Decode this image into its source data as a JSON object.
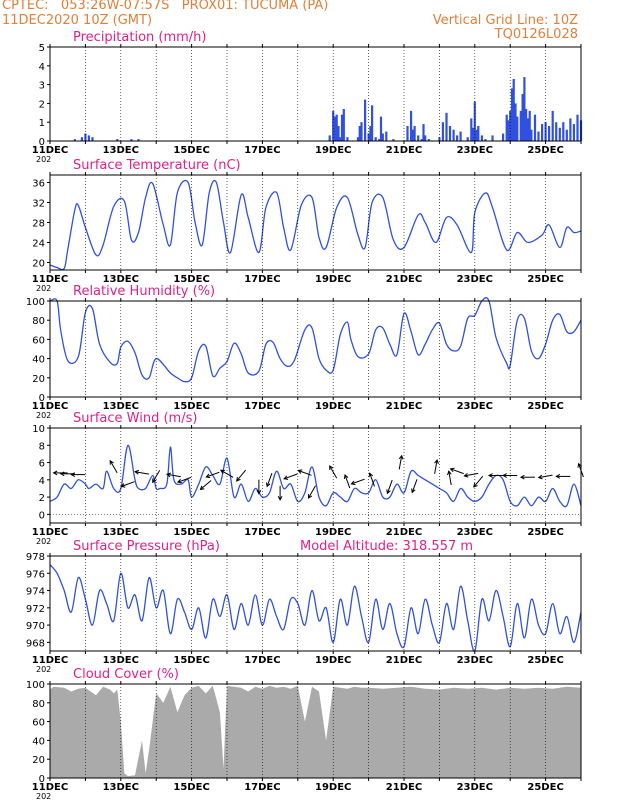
{
  "header": {
    "left_line1": "CPTEC:   053:26W-07:57S   PROX01: TUCUMA (PA)",
    "left_line2": "11DEC2020 10Z (GMT)",
    "right_line1": "Vertical Grid Line: 10Z",
    "right_line2": "TQ0126L028"
  },
  "colors": {
    "header": "#e0803a",
    "title": "#e0208a",
    "line": "#3050e0",
    "cloud": "#aaaaaa",
    "arrow": "#000000"
  },
  "x_axis": {
    "start_day": 11,
    "end_day": 26,
    "tick_labels": [
      "11DEC",
      "13DEC",
      "15DEC",
      "17DEC",
      "19DEC",
      "21DEC",
      "23DEC",
      "25DEC"
    ],
    "year_fragment": "202"
  },
  "chart_data": [
    {
      "type": "bar",
      "title": "Precipitation (mm/h)",
      "ylim": [
        0,
        5
      ],
      "yticks": [
        0,
        1,
        2,
        3,
        4,
        5
      ],
      "x": [
        11.7,
        11.9,
        12.0,
        12.1,
        12.2,
        12.9,
        13.3,
        13.5,
        18.9,
        19.0,
        19.05,
        19.1,
        19.15,
        19.2,
        19.25,
        19.3,
        19.4,
        19.7,
        19.75,
        19.8,
        19.9,
        20.0,
        20.05,
        20.1,
        20.2,
        20.3,
        20.35,
        20.4,
        20.5,
        20.7,
        21.1,
        21.2,
        21.25,
        21.3,
        21.4,
        21.5,
        21.55,
        21.6,
        21.7,
        22.0,
        22.1,
        22.2,
        22.3,
        22.4,
        22.5,
        22.6,
        22.8,
        22.9,
        22.95,
        23.0,
        23.05,
        23.1,
        23.2,
        23.3,
        23.5,
        23.8,
        23.9,
        23.95,
        24.0,
        24.05,
        24.1,
        24.15,
        24.2,
        24.3,
        24.35,
        24.4,
        24.45,
        24.5,
        24.55,
        24.6,
        24.7,
        24.8,
        24.9,
        25.0,
        25.1,
        25.2,
        25.3,
        25.4,
        25.5,
        25.6,
        25.7,
        25.8,
        25.9,
        26.0
      ],
      "values": [
        0.1,
        0.2,
        0.4,
        0.3,
        0.2,
        0.1,
        0.1,
        0.1,
        0.3,
        1.6,
        1.3,
        1.4,
        0.8,
        0.2,
        1.4,
        1.7,
        0.2,
        0.2,
        0.8,
        1.0,
        2.2,
        0.4,
        0.8,
        1.9,
        0.2,
        0.1,
        1.3,
        0.4,
        0.5,
        0.1,
        0.8,
        1.6,
        0.6,
        0.8,
        0.3,
        0.1,
        0.9,
        0.3,
        0.1,
        0.2,
        1.0,
        1.5,
        0.8,
        0.6,
        0.3,
        0.5,
        0.2,
        1.2,
        0.7,
        2.1,
        0.6,
        0.8,
        0.3,
        0.1,
        0.3,
        0.4,
        1.4,
        1.1,
        1.6,
        2.8,
        3.3,
        2.0,
        1.3,
        1.6,
        2.5,
        3.4,
        1.7,
        1.2,
        1.6,
        0.6,
        1.4,
        0.5,
        0.9,
        1.0,
        0.8,
        1.6,
        1.0,
        0.7,
        1.0,
        0.6,
        1.2,
        0.9,
        1.4,
        1.1
      ]
    },
    {
      "type": "line",
      "title": "Surface Temperature (nC)",
      "ylim": [
        18.5,
        37.5
      ],
      "yticks": [
        20,
        24,
        28,
        32,
        36
      ],
      "x": [
        11.0,
        11.2,
        11.4,
        11.5,
        11.7,
        11.8,
        12.0,
        12.3,
        12.5,
        12.8,
        13.1,
        13.3,
        13.5,
        13.7,
        13.9,
        14.2,
        14.4,
        14.6,
        14.9,
        15.1,
        15.3,
        15.5,
        15.7,
        15.9,
        16.1,
        16.4,
        16.6,
        16.9,
        17.1,
        17.4,
        17.6,
        17.8,
        18.1,
        18.4,
        18.6,
        18.8,
        19.1,
        19.4,
        19.7,
        19.9,
        20.1,
        20.4,
        20.7,
        21.0,
        21.4,
        21.6,
        21.9,
        22.2,
        22.5,
        22.9,
        23.0,
        23.3,
        23.5,
        23.9,
        24.2,
        24.5,
        24.9,
        25.1,
        25.4,
        25.6,
        25.8,
        26.0
      ],
      "values": [
        19.5,
        19.0,
        18.8,
        22.5,
        30.5,
        31.4,
        27.0,
        21.5,
        23.5,
        31.2,
        32.3,
        24.5,
        26.0,
        33.0,
        35.8,
        27.5,
        23.5,
        34.0,
        36.0,
        28.0,
        23.5,
        34.0,
        36.0,
        28.0,
        22.0,
        33.5,
        29.0,
        22.0,
        31.0,
        34.0,
        27.0,
        22.5,
        31.5,
        33.0,
        25.0,
        23.0,
        31.0,
        33.0,
        25.5,
        23.0,
        32.0,
        33.0,
        24.5,
        23.0,
        29.5,
        28.0,
        24.0,
        29.0,
        27.5,
        22.0,
        30.0,
        33.9,
        31.0,
        22.5,
        26.0,
        24.0,
        25.5,
        27.5,
        23.0,
        27.0,
        26.0,
        26.3
      ]
    },
    {
      "type": "line",
      "title": "Relative Humidity (%)",
      "ylim": [
        0,
        100
      ],
      "yticks": [
        0,
        20,
        40,
        60,
        80,
        100
      ],
      "x": [
        11.0,
        11.2,
        11.3,
        11.5,
        11.8,
        12.0,
        12.2,
        12.4,
        12.7,
        12.9,
        13.0,
        13.2,
        13.4,
        13.6,
        13.8,
        14.0,
        14.4,
        14.6,
        14.8,
        15.0,
        15.2,
        15.4,
        15.6,
        15.8,
        16.0,
        16.2,
        16.4,
        16.6,
        16.9,
        17.1,
        17.3,
        17.5,
        17.7,
        17.9,
        18.2,
        18.4,
        18.6,
        18.8,
        19.0,
        19.2,
        19.4,
        19.5,
        19.7,
        20.0,
        20.2,
        20.4,
        20.6,
        20.8,
        21.0,
        21.2,
        21.4,
        21.6,
        21.8,
        22.0,
        22.2,
        22.4,
        22.6,
        22.8,
        23.0,
        23.2,
        23.4,
        23.6,
        23.9,
        24.0,
        24.2,
        24.4,
        24.6,
        24.8,
        25.0,
        25.2,
        25.4,
        25.6,
        25.8,
        26.0
      ],
      "values": [
        100,
        100,
        70,
        38,
        42,
        88,
        92,
        55,
        36,
        35,
        52,
        58,
        46,
        23,
        20,
        40,
        25,
        20,
        16,
        20,
        48,
        53,
        22,
        30,
        37,
        56,
        45,
        25,
        27,
        55,
        57,
        40,
        32,
        38,
        70,
        72,
        40,
        28,
        28,
        65,
        78,
        60,
        42,
        45,
        70,
        72,
        55,
        44,
        87,
        68,
        44,
        55,
        70,
        77,
        55,
        48,
        53,
        82,
        85,
        100,
        100,
        62,
        35,
        33,
        80,
        82,
        48,
        40,
        55,
        80,
        86,
        68,
        68,
        80
      ]
    },
    {
      "type": "line",
      "title": "Surface Wind (m/s)",
      "ylim": [
        -1,
        10
      ],
      "yticks": [
        0,
        2,
        4,
        6,
        8,
        10
      ],
      "x": [
        11.0,
        11.2,
        11.4,
        11.6,
        11.8,
        12.0,
        12.1,
        12.3,
        12.5,
        12.6,
        12.8,
        13.0,
        13.2,
        13.4,
        13.5,
        13.7,
        13.9,
        14.0,
        14.1,
        14.3,
        14.4,
        14.5,
        14.7,
        14.9,
        15.0,
        15.2,
        15.4,
        15.6,
        15.8,
        16.0,
        16.2,
        16.4,
        16.6,
        16.8,
        17.0,
        17.2,
        17.4,
        17.6,
        17.8,
        18.0,
        18.2,
        18.4,
        18.6,
        18.8,
        19.0,
        19.2,
        19.4,
        19.6,
        19.8,
        20.0,
        20.2,
        20.4,
        20.6,
        20.8,
        21.0,
        21.2,
        21.4,
        21.6,
        21.8,
        22.0,
        22.2,
        22.4,
        22.6,
        22.8,
        23.0,
        23.2,
        23.4,
        23.6,
        23.8,
        24.0,
        24.2,
        24.4,
        24.6,
        24.8,
        25.0,
        25.2,
        25.4,
        25.6,
        25.8,
        26.0
      ],
      "values": [
        1.5,
        2.0,
        3.5,
        3.0,
        4.0,
        3.5,
        3.0,
        3.5,
        3.0,
        5.0,
        3.0,
        3.0,
        8.0,
        4.0,
        3.0,
        3.0,
        4.5,
        3.0,
        3.0,
        3.5,
        7.8,
        4.0,
        3.5,
        4.0,
        2.0,
        3.5,
        5.5,
        4.5,
        3.5,
        6.5,
        2.0,
        3.5,
        1.5,
        3.0,
        2.0,
        2.5,
        5.0,
        3.0,
        3.5,
        1.5,
        2.5,
        5.5,
        2.0,
        1.0,
        2.5,
        2.0,
        1.5,
        3.0,
        2.5,
        2.5,
        4.0,
        2.0,
        2.0,
        3.5,
        2.5,
        5.0,
        4.5,
        4.0,
        3.5,
        3.0,
        2.5,
        1.5,
        3.0,
        2.0,
        1.5,
        2.0,
        3.5,
        4.5,
        4.0,
        1.5,
        1.0,
        2.0,
        1.0,
        2.0,
        1.5,
        3.0,
        1.5,
        1.0,
        3.5,
        1.0
      ]
    },
    {
      "type": "line",
      "title": "Surface Pressure (hPa)",
      "subtitle": "Model Altitude: 318.557 m",
      "ylim": [
        967,
        978
      ],
      "yticks": [
        968,
        970,
        972,
        974,
        976,
        978
      ],
      "x": [
        11.0,
        11.2,
        11.4,
        11.6,
        11.8,
        12.0,
        12.2,
        12.4,
        12.6,
        12.8,
        13.0,
        13.2,
        13.4,
        13.6,
        13.8,
        14.0,
        14.2,
        14.4,
        14.6,
        14.8,
        15.0,
        15.2,
        15.4,
        15.6,
        15.8,
        16.0,
        16.2,
        16.4,
        16.6,
        16.8,
        17.0,
        17.2,
        17.4,
        17.6,
        17.8,
        18.0,
        18.2,
        18.4,
        18.6,
        18.8,
        19.0,
        19.2,
        19.4,
        19.6,
        19.8,
        20.0,
        20.2,
        20.4,
        20.6,
        20.8,
        21.0,
        21.2,
        21.4,
        21.6,
        21.8,
        22.0,
        22.2,
        22.4,
        22.6,
        22.8,
        23.0,
        23.2,
        23.4,
        23.6,
        23.8,
        24.0,
        24.2,
        24.4,
        24.6,
        24.8,
        25.0,
        25.2,
        25.4,
        25.6,
        25.8,
        26.0
      ],
      "values": [
        977.0,
        976.0,
        974.0,
        971.5,
        975.5,
        973.0,
        970.0,
        974.0,
        972.5,
        970.5,
        976.0,
        972.0,
        973.5,
        970.5,
        975.5,
        972.0,
        974.0,
        969.0,
        973.0,
        971.5,
        969.5,
        972.0,
        968.5,
        973.0,
        971.0,
        973.5,
        969.5,
        972.5,
        970.0,
        973.5,
        970.0,
        973.0,
        971.0,
        969.5,
        973.0,
        972.5,
        970.0,
        974.0,
        970.5,
        972.0,
        968.0,
        973.0,
        970.0,
        974.5,
        971.0,
        968.0,
        973.0,
        969.5,
        972.5,
        969.0,
        967.5,
        972.0,
        969.0,
        973.0,
        970.0,
        968.0,
        972.5,
        969.5,
        974.5,
        970.5,
        967.0,
        973.0,
        970.5,
        974.0,
        971.0,
        967.5,
        972.5,
        968.5,
        973.0,
        970.0,
        969.0,
        972.5,
        969.0,
        971.0,
        968.0,
        971.5
      ]
    },
    {
      "type": "area",
      "title": "Cloud Cover (%)",
      "ylim": [
        0,
        100
      ],
      "yticks": [
        0,
        20,
        40,
        60,
        80,
        100
      ],
      "x": [
        11.0,
        11.1,
        11.4,
        11.6,
        11.8,
        12.0,
        12.3,
        12.5,
        12.7,
        12.8,
        12.9,
        13.0,
        13.1,
        13.2,
        13.4,
        13.6,
        13.7,
        13.8,
        14.0,
        14.2,
        14.4,
        14.6,
        14.8,
        15.0,
        15.2,
        15.4,
        15.6,
        15.8,
        15.9,
        16.0,
        16.2,
        16.4,
        16.6,
        16.8,
        17.0,
        17.2,
        17.4,
        17.6,
        17.8,
        18.0,
        18.2,
        18.4,
        18.6,
        18.8,
        19.0,
        19.2,
        19.4,
        19.6,
        19.8,
        20.0,
        20.4,
        20.8,
        21.2,
        21.6,
        22.0,
        22.4,
        22.8,
        23.2,
        23.6,
        24.0,
        24.4,
        24.8,
        25.2,
        25.6,
        26.0
      ],
      "values": [
        94,
        97,
        96,
        92,
        95,
        96,
        88,
        97,
        94,
        90,
        94,
        60,
        5,
        2,
        3,
        40,
        5,
        30,
        90,
        80,
        97,
        70,
        88,
        96,
        98,
        90,
        98,
        70,
        10,
        98,
        97,
        96,
        92,
        97,
        95,
        98,
        96,
        97,
        95,
        98,
        60,
        97,
        92,
        40,
        97,
        96,
        95,
        97,
        96,
        96,
        95,
        96,
        97,
        95,
        94,
        96,
        95,
        96,
        94,
        96,
        95,
        96,
        95,
        97,
        96
      ]
    }
  ],
  "wind_arrows": [
    {
      "day": 11.3,
      "dir_deg": 180,
      "speed": 4.8
    },
    {
      "day": 11.5,
      "dir_deg": 180,
      "speed": 4.7
    },
    {
      "day": 11.8,
      "dir_deg": 180,
      "speed": 4.6
    },
    {
      "day": 12.8,
      "dir_deg": 120,
      "speed": 5.5
    },
    {
      "day": 13.2,
      "dir_deg": 200,
      "speed": 3.5
    },
    {
      "day": 13.6,
      "dir_deg": 170,
      "speed": 4.8
    },
    {
      "day": 14.0,
      "dir_deg": 240,
      "speed": 4.4
    },
    {
      "day": 14.5,
      "dir_deg": 170,
      "speed": 4.5
    },
    {
      "day": 14.8,
      "dir_deg": 200,
      "speed": 4.0
    },
    {
      "day": 15.4,
      "dir_deg": 220,
      "speed": 3.4
    },
    {
      "day": 15.6,
      "dir_deg": 200,
      "speed": 4.6
    },
    {
      "day": 16.0,
      "dir_deg": 150,
      "speed": 4.7
    },
    {
      "day": 16.4,
      "dir_deg": 230,
      "speed": 4.5
    },
    {
      "day": 16.9,
      "dir_deg": 270,
      "speed": 3.2
    },
    {
      "day": 17.2,
      "dir_deg": 250,
      "speed": 4.0
    },
    {
      "day": 17.5,
      "dir_deg": 270,
      "speed": 2.5
    },
    {
      "day": 17.8,
      "dir_deg": 200,
      "speed": 4.4
    },
    {
      "day": 18.2,
      "dir_deg": 160,
      "speed": 4.8
    },
    {
      "day": 18.4,
      "dir_deg": 240,
      "speed": 2.6
    },
    {
      "day": 19.0,
      "dir_deg": 120,
      "speed": 4.9
    },
    {
      "day": 19.4,
      "dir_deg": 110,
      "speed": 3.8
    },
    {
      "day": 19.7,
      "dir_deg": 200,
      "speed": 3.8
    },
    {
      "day": 20.1,
      "dir_deg": 110,
      "speed": 4.0
    },
    {
      "day": 20.6,
      "dir_deg": 250,
      "speed": 3.2
    },
    {
      "day": 20.9,
      "dir_deg": 80,
      "speed": 6.0
    },
    {
      "day": 21.3,
      "dir_deg": 250,
      "speed": 3.3
    },
    {
      "day": 21.9,
      "dir_deg": 80,
      "speed": 5.5
    },
    {
      "day": 22.3,
      "dir_deg": 100,
      "speed": 4.2
    },
    {
      "day": 22.5,
      "dir_deg": 160,
      "speed": 5.0
    },
    {
      "day": 22.9,
      "dir_deg": 190,
      "speed": 4.6
    },
    {
      "day": 23.1,
      "dir_deg": 230,
      "speed": 3.8
    },
    {
      "day": 23.6,
      "dir_deg": 180,
      "speed": 4.5
    },
    {
      "day": 24.0,
      "dir_deg": 180,
      "speed": 4.5
    },
    {
      "day": 24.5,
      "dir_deg": 180,
      "speed": 4.3
    },
    {
      "day": 25.0,
      "dir_deg": 190,
      "speed": 4.4
    },
    {
      "day": 25.5,
      "dir_deg": 180,
      "speed": 4.4
    },
    {
      "day": 26.0,
      "dir_deg": 110,
      "speed": 5.1
    }
  ]
}
